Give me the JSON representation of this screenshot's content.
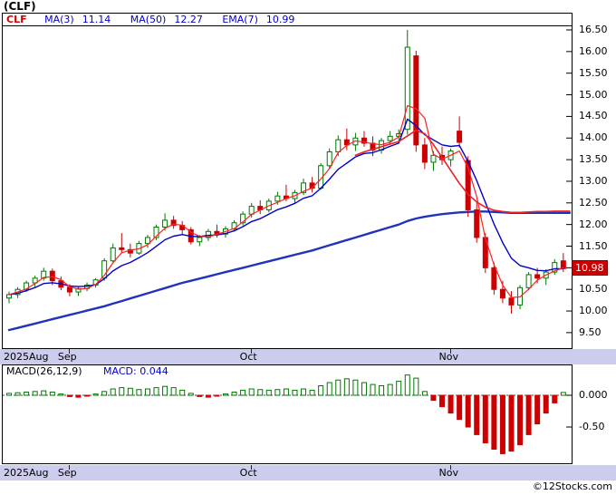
{
  "title": "(CLF)",
  "legend": {
    "symbol": "CLF",
    "items": [
      {
        "label": "MA(3)",
        "value": "11.14"
      },
      {
        "label": "MA(50)",
        "value": "12.27"
      },
      {
        "label": "EMA(7)",
        "value": "10.99"
      }
    ]
  },
  "last_price": "10.98",
  "price_axis_ticks": [
    "16.50",
    "16.00",
    "15.50",
    "15.00",
    "14.50",
    "14.00",
    "13.50",
    "13.00",
    "12.50",
    "12.00",
    "11.50",
    "11.00",
    "10.50",
    "10.00",
    "9.50"
  ],
  "macd": {
    "label": "MACD(26,12,9)",
    "value_label": "MACD: 0.044",
    "axis_ticks": [
      "0.000",
      "-0.50"
    ]
  },
  "date_axis": {
    "labels": [
      {
        "label": "2025Aug",
        "index": 0
      },
      {
        "label": "Sep",
        "index": 7
      },
      {
        "label": "Oct",
        "index": 28
      },
      {
        "label": "Nov",
        "index": 51
      }
    ]
  },
  "footer": "©12Stocks.com",
  "colors": {
    "up": "#007700",
    "down": "#cc0000",
    "ma_fast_red": "#ff2222",
    "ema_blue": "#0000cc",
    "ma50_blue": "#2233bb",
    "ma50_red": "#ee2222",
    "macd_pos": "#007700",
    "macd_neg": "#cc0000",
    "badge_bg": "#cc0000",
    "strip_bg": "#ccccee"
  },
  "chart_data": {
    "type": "candlestick",
    "title": "(CLF) daily candlesticks with MA(3), MA(50), EMA(7) overlays and MACD(26,12,9) histogram",
    "x_axis": "Trading days, late Aug 2025 through Nov 2025; month starts at indices 0, 7, 28, 51",
    "ylim": [
      9.5,
      16.5
    ],
    "macd_ylim": [
      -1.0,
      0.5
    ],
    "last_close": 10.98,
    "legend_values": {
      "ma3": 11.14,
      "ma50": 12.27,
      "ema7": 10.99,
      "macd": 0.044
    },
    "ohlc": [
      [
        10.3,
        10.45,
        10.18,
        10.38
      ],
      [
        10.38,
        10.55,
        10.3,
        10.5
      ],
      [
        10.5,
        10.7,
        10.44,
        10.65
      ],
      [
        10.65,
        10.82,
        10.55,
        10.76
      ],
      [
        10.76,
        11.0,
        10.7,
        10.92
      ],
      [
        10.92,
        10.98,
        10.6,
        10.7
      ],
      [
        10.7,
        10.8,
        10.48,
        10.55
      ],
      [
        10.55,
        10.62,
        10.34,
        10.44
      ],
      [
        10.44,
        10.56,
        10.35,
        10.52
      ],
      [
        10.52,
        10.66,
        10.46,
        10.6
      ],
      [
        10.6,
        10.76,
        10.54,
        10.72
      ],
      [
        10.76,
        11.22,
        10.7,
        11.16
      ],
      [
        11.16,
        11.56,
        11.1,
        11.46
      ],
      [
        11.46,
        11.8,
        11.34,
        11.42
      ],
      [
        11.42,
        11.56,
        11.24,
        11.34
      ],
      [
        11.34,
        11.62,
        11.3,
        11.56
      ],
      [
        11.56,
        11.76,
        11.46,
        11.7
      ],
      [
        11.7,
        12.0,
        11.64,
        11.94
      ],
      [
        11.94,
        12.26,
        11.86,
        12.1
      ],
      [
        12.1,
        12.2,
        11.9,
        11.98
      ],
      [
        11.98,
        12.08,
        11.78,
        11.88
      ],
      [
        11.88,
        11.94,
        11.54,
        11.6
      ],
      [
        11.6,
        11.76,
        11.5,
        11.7
      ],
      [
        11.7,
        11.9,
        11.62,
        11.84
      ],
      [
        11.84,
        12.0,
        11.7,
        11.78
      ],
      [
        11.78,
        11.96,
        11.7,
        11.9
      ],
      [
        11.9,
        12.1,
        11.84,
        12.04
      ],
      [
        12.04,
        12.3,
        11.98,
        12.24
      ],
      [
        12.24,
        12.5,
        12.16,
        12.42
      ],
      [
        12.42,
        12.56,
        12.24,
        12.34
      ],
      [
        12.34,
        12.6,
        12.28,
        12.54
      ],
      [
        12.54,
        12.76,
        12.46,
        12.66
      ],
      [
        12.66,
        12.92,
        12.54,
        12.6
      ],
      [
        12.6,
        12.8,
        12.5,
        12.74
      ],
      [
        12.74,
        13.06,
        12.68,
        12.96
      ],
      [
        12.96,
        13.1,
        12.74,
        12.84
      ],
      [
        12.84,
        13.42,
        12.8,
        13.36
      ],
      [
        13.36,
        13.76,
        13.28,
        13.68
      ],
      [
        13.68,
        14.06,
        13.58,
        13.96
      ],
      [
        13.96,
        14.22,
        13.72,
        13.84
      ],
      [
        13.84,
        14.12,
        13.7,
        14.0
      ],
      [
        14.0,
        14.16,
        13.8,
        13.88
      ],
      [
        13.88,
        14.04,
        13.58,
        13.72
      ],
      [
        13.72,
        14.0,
        13.64,
        13.94
      ],
      [
        13.94,
        14.16,
        13.84,
        14.04
      ],
      [
        14.04,
        14.2,
        13.88,
        14.1
      ],
      [
        14.2,
        16.5,
        14.08,
        16.1
      ],
      [
        15.9,
        16.02,
        13.68,
        13.84
      ],
      [
        13.84,
        14.0,
        13.28,
        13.44
      ],
      [
        13.44,
        13.7,
        13.24,
        13.6
      ],
      [
        13.6,
        13.8,
        13.38,
        13.5
      ],
      [
        13.5,
        13.76,
        13.34,
        13.7
      ],
      [
        14.16,
        14.5,
        13.78,
        13.9
      ],
      [
        13.48,
        13.58,
        12.18,
        12.34
      ],
      [
        12.34,
        12.5,
        11.58,
        11.7
      ],
      [
        11.7,
        11.8,
        10.88,
        11.0
      ],
      [
        11.0,
        11.12,
        10.38,
        10.5
      ],
      [
        10.5,
        10.7,
        10.18,
        10.3
      ],
      [
        10.3,
        10.46,
        9.94,
        10.14
      ],
      [
        10.14,
        10.6,
        10.04,
        10.54
      ],
      [
        10.54,
        10.9,
        10.48,
        10.84
      ],
      [
        10.84,
        11.0,
        10.64,
        10.76
      ],
      [
        10.76,
        10.96,
        10.6,
        10.9
      ],
      [
        10.9,
        11.2,
        10.84,
        11.12
      ],
      [
        11.16,
        11.34,
        10.9,
        10.98
      ]
    ],
    "ma50": [
      9.56,
      9.61,
      9.66,
      9.71,
      9.76,
      9.81,
      9.86,
      9.91,
      9.96,
      10.01,
      10.06,
      10.11,
      10.17,
      10.23,
      10.29,
      10.35,
      10.41,
      10.47,
      10.53,
      10.59,
      10.65,
      10.7,
      10.75,
      10.8,
      10.85,
      10.9,
      10.95,
      11.0,
      11.05,
      11.1,
      11.15,
      11.2,
      11.25,
      11.3,
      11.35,
      11.4,
      11.46,
      11.52,
      11.58,
      11.64,
      11.7,
      11.76,
      11.82,
      11.88,
      11.94,
      12.0,
      12.08,
      12.14,
      12.18,
      12.21,
      12.24,
      12.26,
      12.28,
      12.29,
      12.3,
      12.3,
      12.29,
      12.28,
      12.27,
      12.27,
      12.27,
      12.27,
      12.27,
      12.27,
      12.27
    ],
    "ma50_red": [
      null,
      null,
      null,
      null,
      null,
      null,
      null,
      null,
      null,
      null,
      null,
      null,
      null,
      null,
      null,
      null,
      null,
      null,
      null,
      null,
      null,
      null,
      null,
      null,
      null,
      null,
      null,
      null,
      null,
      null,
      null,
      null,
      null,
      null,
      null,
      null,
      null,
      null,
      null,
      null,
      13.6,
      13.68,
      13.74,
      13.8,
      13.86,
      13.92,
      14.05,
      14.18,
      14.1,
      13.85,
      13.55,
      13.25,
      12.95,
      12.7,
      12.52,
      12.4,
      12.33,
      12.3,
      12.28,
      12.28,
      12.29,
      12.3,
      12.3,
      12.31,
      12.31
    ],
    "macd_hist": [
      0.03,
      0.04,
      0.05,
      0.06,
      0.07,
      0.05,
      0.02,
      -0.02,
      -0.03,
      -0.01,
      0.02,
      0.06,
      0.1,
      0.12,
      0.11,
      0.09,
      0.1,
      0.12,
      0.14,
      0.12,
      0.08,
      0.03,
      -0.02,
      -0.03,
      -0.01,
      0.02,
      0.05,
      0.08,
      0.1,
      0.09,
      0.08,
      0.09,
      0.1,
      0.08,
      0.1,
      0.08,
      0.15,
      0.2,
      0.24,
      0.26,
      0.24,
      0.2,
      0.17,
      0.15,
      0.17,
      0.22,
      0.32,
      0.27,
      0.06,
      -0.08,
      -0.18,
      -0.28,
      -0.38,
      -0.5,
      -0.62,
      -0.75,
      -0.85,
      -0.92,
      -0.88,
      -0.78,
      -0.62,
      -0.45,
      -0.28,
      -0.12,
      0.044
    ]
  }
}
